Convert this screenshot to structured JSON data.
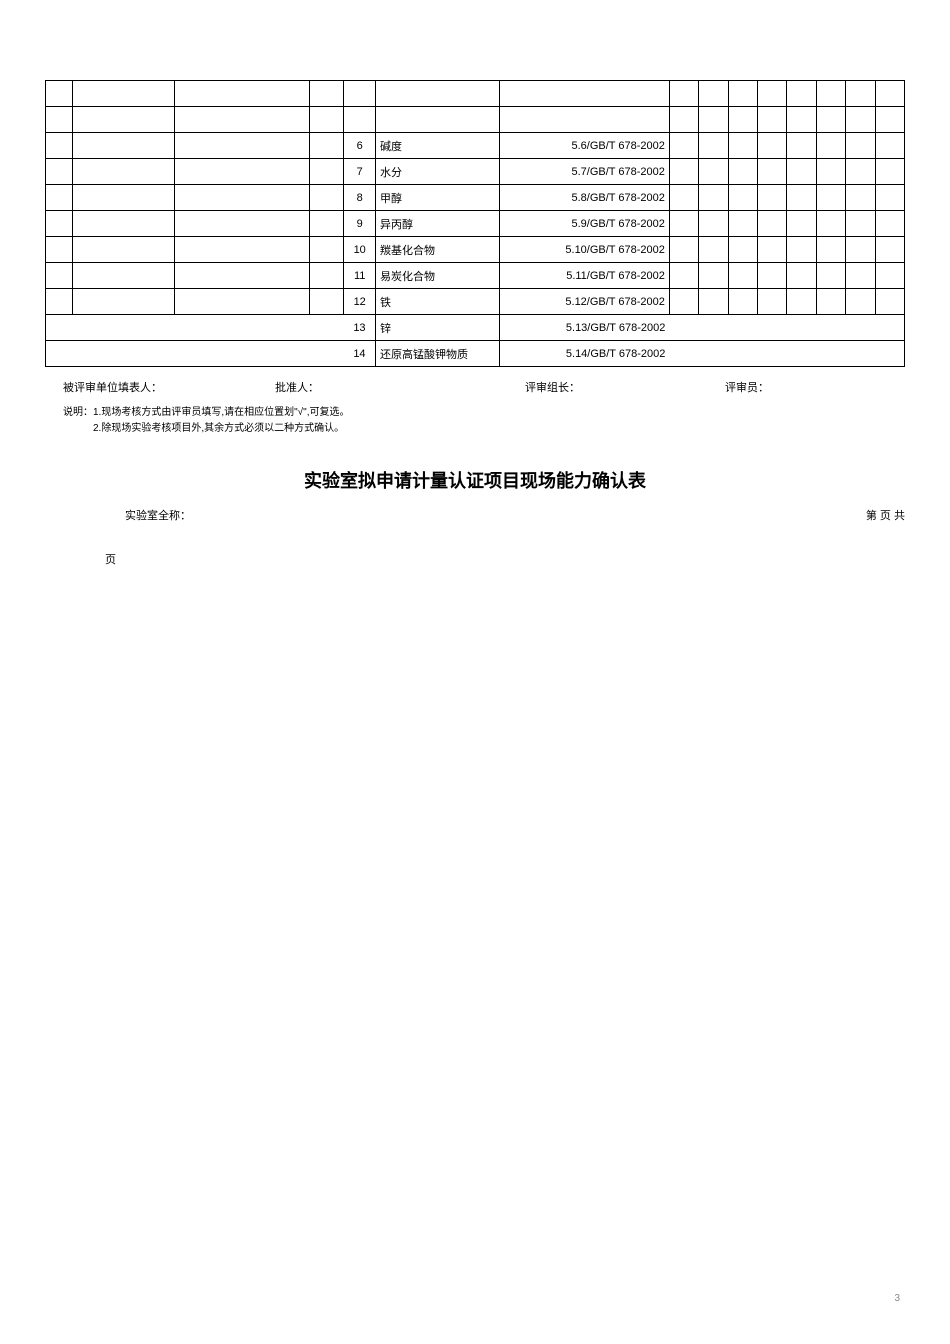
{
  "table": {
    "rows": [
      {
        "num": "6",
        "param": "碱度",
        "std": "5.6/GB/T 678-2002"
      },
      {
        "num": "7",
        "param": "水分",
        "std": "5.7/GB/T 678-2002"
      },
      {
        "num": "8",
        "param": "甲醇",
        "std": "5.8/GB/T 678-2002"
      },
      {
        "num": "9",
        "param": "异丙醇",
        "std": "5.9/GB/T 678-2002"
      },
      {
        "num": "10",
        "param": "羰基化合物",
        "std": "5.10/GB/T 678-2002"
      },
      {
        "num": "11",
        "param": "易炭化合物",
        "std": "5.11/GB/T 678-2002"
      },
      {
        "num": "12",
        "param": "铁",
        "std": "5.12/GB/T 678-2002"
      },
      {
        "num": "13",
        "param": "锌",
        "std": "5.13/GB/T 678-2002"
      },
      {
        "num": "14",
        "param": "还原高锰酸钾物质",
        "std": "5.14/GB/T 678-2002"
      }
    ]
  },
  "signatures": {
    "filler": "被评审单位填表人：",
    "approver": "批准人：",
    "leader": "评审组长：",
    "reviewer": "评审员："
  },
  "notes": {
    "prefix": "说明：",
    "line1": "1.现场考核方式由评审员填写,请在相应位置划\"√\",可复选。",
    "line2": "2.除现场实验考核项目外,其余方式必须以二种方式确认。"
  },
  "title": "实验室拟申请计量认证项目现场能力确认表",
  "subhead": {
    "left": "实验室全称：",
    "right": "第    页  共"
  },
  "ye": "页",
  "pagenum": "3",
  "col_widths": {
    "c1": "24px",
    "c2": "90px",
    "c3": "120px",
    "c4": "30px",
    "c5": "28px",
    "c6": "110px",
    "c7": "150px",
    "c8": "26px",
    "c9": "26px",
    "c10": "26px",
    "c11": "26px",
    "c12": "26px",
    "c13": "26px",
    "c14": "26px",
    "c15": "26px"
  }
}
